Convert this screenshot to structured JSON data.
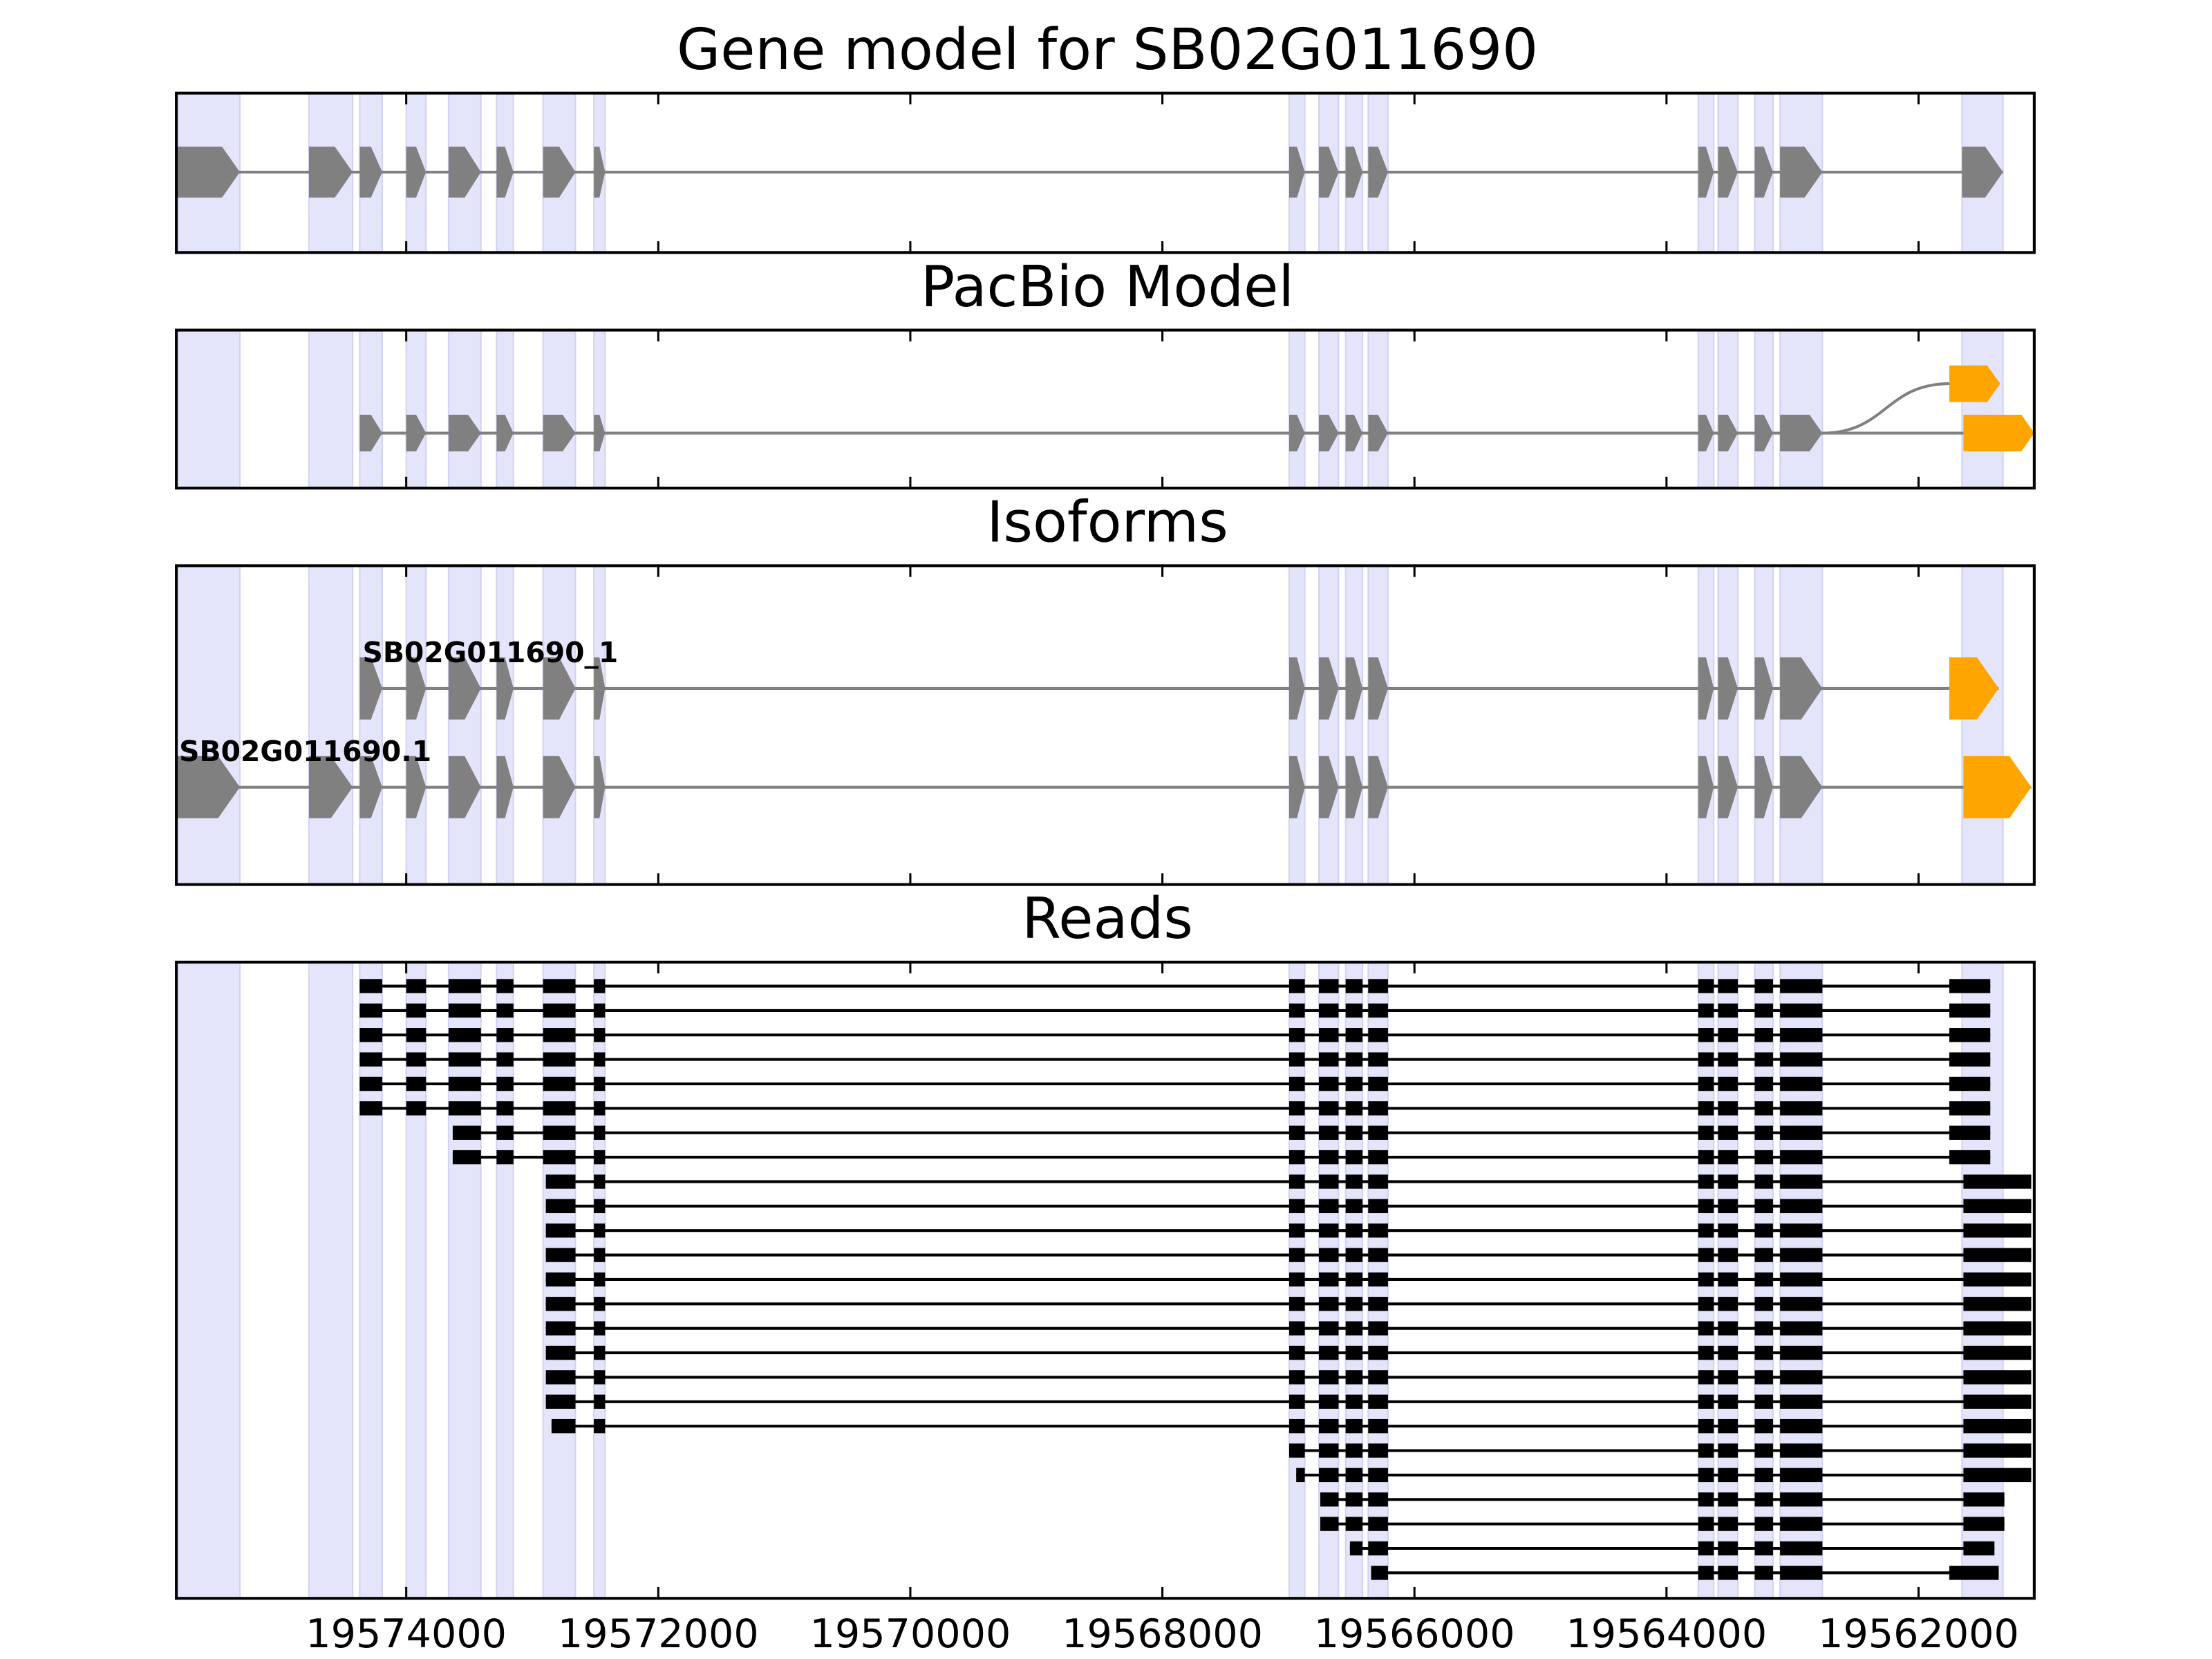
{
  "chart_data": {
    "type": "gene-track",
    "titles": {
      "gene_model": "Gene model for SB02G011690",
      "pacbio": "PacBio Model",
      "isoforms": "Isoforms",
      "reads": "Reads"
    },
    "xlim": [
      19575824,
      19561082
    ],
    "xticks": [
      19574000,
      19572000,
      19570000,
      19568000,
      19566000,
      19564000,
      19562000
    ],
    "exon_color": "#808080",
    "utr_color": "#ffa500",
    "read_color": "#000000",
    "shade_color": "#e4e4fb",
    "exons": [
      [
        19575824,
        19575320
      ],
      [
        19574772,
        19574425
      ],
      [
        19574369,
        19574190
      ],
      [
        19574000,
        19573843
      ],
      [
        19573664,
        19573407
      ],
      [
        19573283,
        19573149
      ],
      [
        19572914,
        19572657
      ],
      [
        19572511,
        19572422
      ],
      [
        19566994,
        19566870
      ],
      [
        19566758,
        19566602
      ],
      [
        19566546,
        19566412
      ],
      [
        19566367,
        19566210
      ],
      [
        19563748,
        19563625
      ],
      [
        19563591,
        19563434
      ],
      [
        19563300,
        19563155
      ],
      [
        19563099,
        19562763
      ],
      [
        19561655,
        19561330
      ]
    ],
    "pacbio": {
      "start": 19574369,
      "tails": [
        [
          19561644,
          19561082
        ],
        [
          19561756,
          19561353
        ]
      ]
    },
    "isoforms": [
      {
        "name": "SB02G011690_1",
        "start": 19574369,
        "utr": [
          19561756,
          19561364
        ]
      },
      {
        "name": "SB02G011690.1",
        "start": 19575824,
        "utr": [
          19561644,
          19561106
        ]
      }
    ],
    "reads": [
      {
        "start": 19574369,
        "tail": [
          19561756,
          19561431
        ]
      },
      {
        "start": 19574369,
        "tail": [
          19561756,
          19561431
        ]
      },
      {
        "start": 19574369,
        "tail": [
          19561756,
          19561431
        ]
      },
      {
        "start": 19574369,
        "tail": [
          19561756,
          19561431
        ]
      },
      {
        "start": 19574369,
        "tail": [
          19561756,
          19561431
        ]
      },
      {
        "start": 19574369,
        "tail": [
          19561756,
          19561431
        ]
      },
      {
        "start": 19573631,
        "tail": [
          19561756,
          19561431
        ]
      },
      {
        "start": 19573631,
        "tail": [
          19561756,
          19561431
        ]
      },
      {
        "start": 19572892,
        "tail": [
          19561644,
          19561106
        ]
      },
      {
        "start": 19572892,
        "tail": [
          19561644,
          19561106
        ]
      },
      {
        "start": 19572892,
        "tail": [
          19561644,
          19561106
        ]
      },
      {
        "start": 19572892,
        "tail": [
          19561644,
          19561106
        ]
      },
      {
        "start": 19572892,
        "tail": [
          19561644,
          19561106
        ]
      },
      {
        "start": 19572892,
        "tail": [
          19561644,
          19561106
        ]
      },
      {
        "start": 19572892,
        "tail": [
          19561644,
          19561106
        ]
      },
      {
        "start": 19572892,
        "tail": [
          19561644,
          19561106
        ]
      },
      {
        "start": 19572892,
        "tail": [
          19561644,
          19561106
        ]
      },
      {
        "start": 19572892,
        "tail": [
          19561644,
          19561106
        ]
      },
      {
        "start": 19572847,
        "tail": [
          19561644,
          19561106
        ]
      },
      {
        "start": 19566994,
        "tail": [
          19561644,
          19561106
        ]
      },
      {
        "start": 19566938,
        "tail": [
          19561644,
          19561106
        ]
      },
      {
        "start": 19566747,
        "tail": [
          19561644,
          19561319
        ]
      },
      {
        "start": 19566747,
        "tail": [
          19561644,
          19561319
        ]
      },
      {
        "start": 19566512,
        "tail": [
          19561644,
          19561398
        ]
      },
      {
        "start": 19566344,
        "tail": [
          19561756,
          19561364
        ]
      }
    ]
  }
}
